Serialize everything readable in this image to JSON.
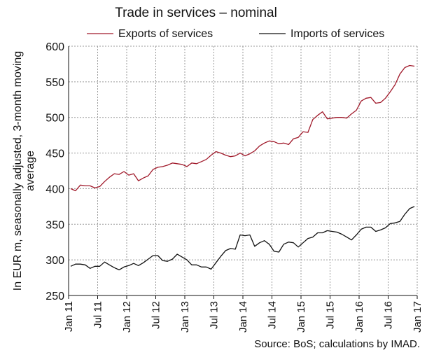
{
  "chart_data": {
    "type": "line",
    "title": "Trade in services – nominal",
    "ylabel": "In EUR m, seasonally adjusted, 3-month moving average",
    "xlabel": "",
    "ylim": [
      250,
      600
    ],
    "y_ticks": [
      250,
      300,
      350,
      400,
      450,
      500,
      550,
      600
    ],
    "x_ticks": [
      "Jan 11",
      "Jul 11",
      "Jan 12",
      "Jul 12",
      "Jan 13",
      "Jul 13",
      "Jan 14",
      "Jul 14",
      "Jan 15",
      "Jul 15",
      "Jan 16",
      "Jul 16",
      "Jan 17"
    ],
    "legend_position": "top",
    "grid": true,
    "source": "Source: BoS; calculations by IMAD.",
    "x": [
      "2011-01",
      "2011-02",
      "2011-03",
      "2011-04",
      "2011-05",
      "2011-06",
      "2011-07",
      "2011-08",
      "2011-09",
      "2011-10",
      "2011-11",
      "2011-12",
      "2012-01",
      "2012-02",
      "2012-03",
      "2012-04",
      "2012-05",
      "2012-06",
      "2012-07",
      "2012-08",
      "2012-09",
      "2012-10",
      "2012-11",
      "2012-12",
      "2013-01",
      "2013-02",
      "2013-03",
      "2013-04",
      "2013-05",
      "2013-06",
      "2013-07",
      "2013-08",
      "2013-09",
      "2013-10",
      "2013-11",
      "2013-12",
      "2014-01",
      "2014-02",
      "2014-03",
      "2014-04",
      "2014-05",
      "2014-06",
      "2014-07",
      "2014-08",
      "2014-09",
      "2014-10",
      "2014-11",
      "2014-12",
      "2015-01",
      "2015-02",
      "2015-03",
      "2015-04",
      "2015-05",
      "2015-06",
      "2015-07",
      "2015-08",
      "2015-09",
      "2015-10",
      "2015-11",
      "2015-12",
      "2016-01",
      "2016-02",
      "2016-03",
      "2016-04",
      "2016-05",
      "2016-06",
      "2016-07",
      "2016-08",
      "2016-09",
      "2016-10",
      "2016-11",
      "2016-12"
    ],
    "series": [
      {
        "name": "Exports of services",
        "color": "#a0192a",
        "values": [
          400,
          397,
          405,
          404,
          404,
          401,
          403,
          410,
          416,
          421,
          420,
          424,
          419,
          421,
          411,
          415,
          418,
          427,
          430,
          431,
          433,
          436,
          435,
          434,
          431,
          436,
          435,
          438,
          441,
          447,
          452,
          450,
          447,
          445,
          446,
          450,
          446,
          449,
          453,
          460,
          464,
          467,
          466,
          463,
          464,
          462,
          470,
          472,
          480,
          479,
          497,
          503,
          508,
          498,
          499,
          500,
          500,
          499,
          505,
          510,
          523,
          527,
          528,
          520,
          521,
          527,
          536,
          546,
          561,
          570,
          573,
          572
        ]
      },
      {
        "name": "Imports of services",
        "color": "#111111",
        "values": [
          291,
          294,
          294,
          293,
          288,
          291,
          291,
          297,
          293,
          289,
          286,
          290,
          292,
          295,
          292,
          296,
          301,
          306,
          306,
          299,
          298,
          301,
          308,
          304,
          300,
          293,
          293,
          290,
          290,
          287,
          296,
          305,
          313,
          316,
          315,
          335,
          334,
          335,
          319,
          324,
          327,
          322,
          312,
          311,
          322,
          325,
          324,
          318,
          324,
          330,
          332,
          338,
          338,
          341,
          340,
          339,
          336,
          332,
          328,
          335,
          343,
          346,
          346,
          340,
          342,
          345,
          351,
          352,
          354,
          364,
          372,
          375
        ]
      }
    ]
  }
}
